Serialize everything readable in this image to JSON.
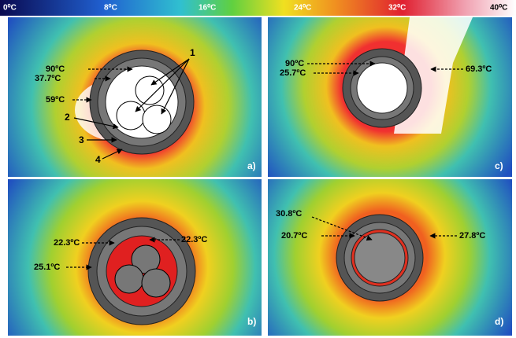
{
  "colorbar": {
    "labels": [
      "0⁰C",
      "8⁰C",
      "16⁰C",
      "24⁰C",
      "32⁰C",
      "40⁰C"
    ]
  },
  "panels": [
    {
      "label": "a)",
      "annotations": [
        "90ºC",
        "37.7ºC",
        "59ºC"
      ],
      "numbers": [
        "1",
        "2",
        "3",
        "4"
      ]
    },
    {
      "label": "c)",
      "annotations": [
        "90ºC",
        "25.7ºC",
        "69.3ºC"
      ]
    },
    {
      "label": "b)",
      "annotations": [
        "22.3ºC",
        "22.3ºC",
        "25.1ºC"
      ]
    },
    {
      "label": "d)",
      "annotations": [
        "30.8ºC",
        "20.7ºC",
        "27.8ºC"
      ]
    }
  ]
}
